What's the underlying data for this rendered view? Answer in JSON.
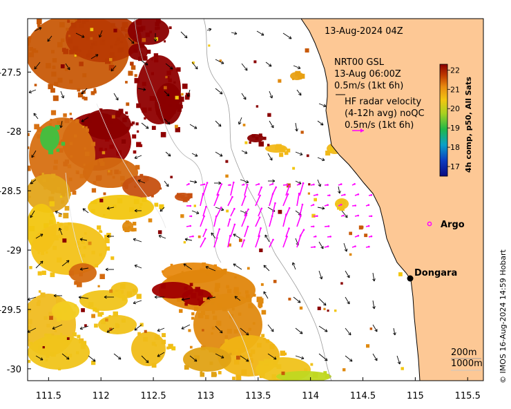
{
  "map": {
    "timestamp": "13-Aug-2024 04Z",
    "nrt_block": {
      "line1": "NRT00 GSL",
      "line2": "13-Aug 06:00Z",
      "line3": "0.5m/s (1kt 6h)"
    },
    "radar_block": {
      "line1": "HF radar velocity",
      "line2": "(4-12h avg) noQC",
      "line3": "0.5m/s (1kt 6h)"
    },
    "places": {
      "argo": "Argo",
      "dongara": "Dongara"
    },
    "isobaths": {
      "shallow": "200m",
      "deep": "1000m"
    },
    "credit": "© IMOS 16-Aug-2024 14:59 Hobart",
    "colorbar": {
      "title": "4h comp, p50, All Sats",
      "ticks": [
        "22",
        "21",
        "20",
        "19",
        "18",
        "17"
      ],
      "min": 16.5,
      "max": 22.3
    },
    "axes": {
      "x_ticks": [
        "111.5",
        "112",
        "112.5",
        "113",
        "113.5",
        "114",
        "114.5",
        "115",
        "115.5"
      ],
      "y_ticks": [
        "-27.5",
        "-28",
        "-28.5",
        "-29",
        "-29.5",
        "-30"
      ],
      "lon_range": [
        111.3,
        115.65
      ],
      "lat_range": [
        -30.1,
        -27.05
      ]
    },
    "colors": {
      "land": "#fdc895",
      "radar_vector": "#ff00ff",
      "warm_sst": "#a40000",
      "mid_sst": "#d86a0a",
      "cool_sst": "#f2c610"
    }
  }
}
